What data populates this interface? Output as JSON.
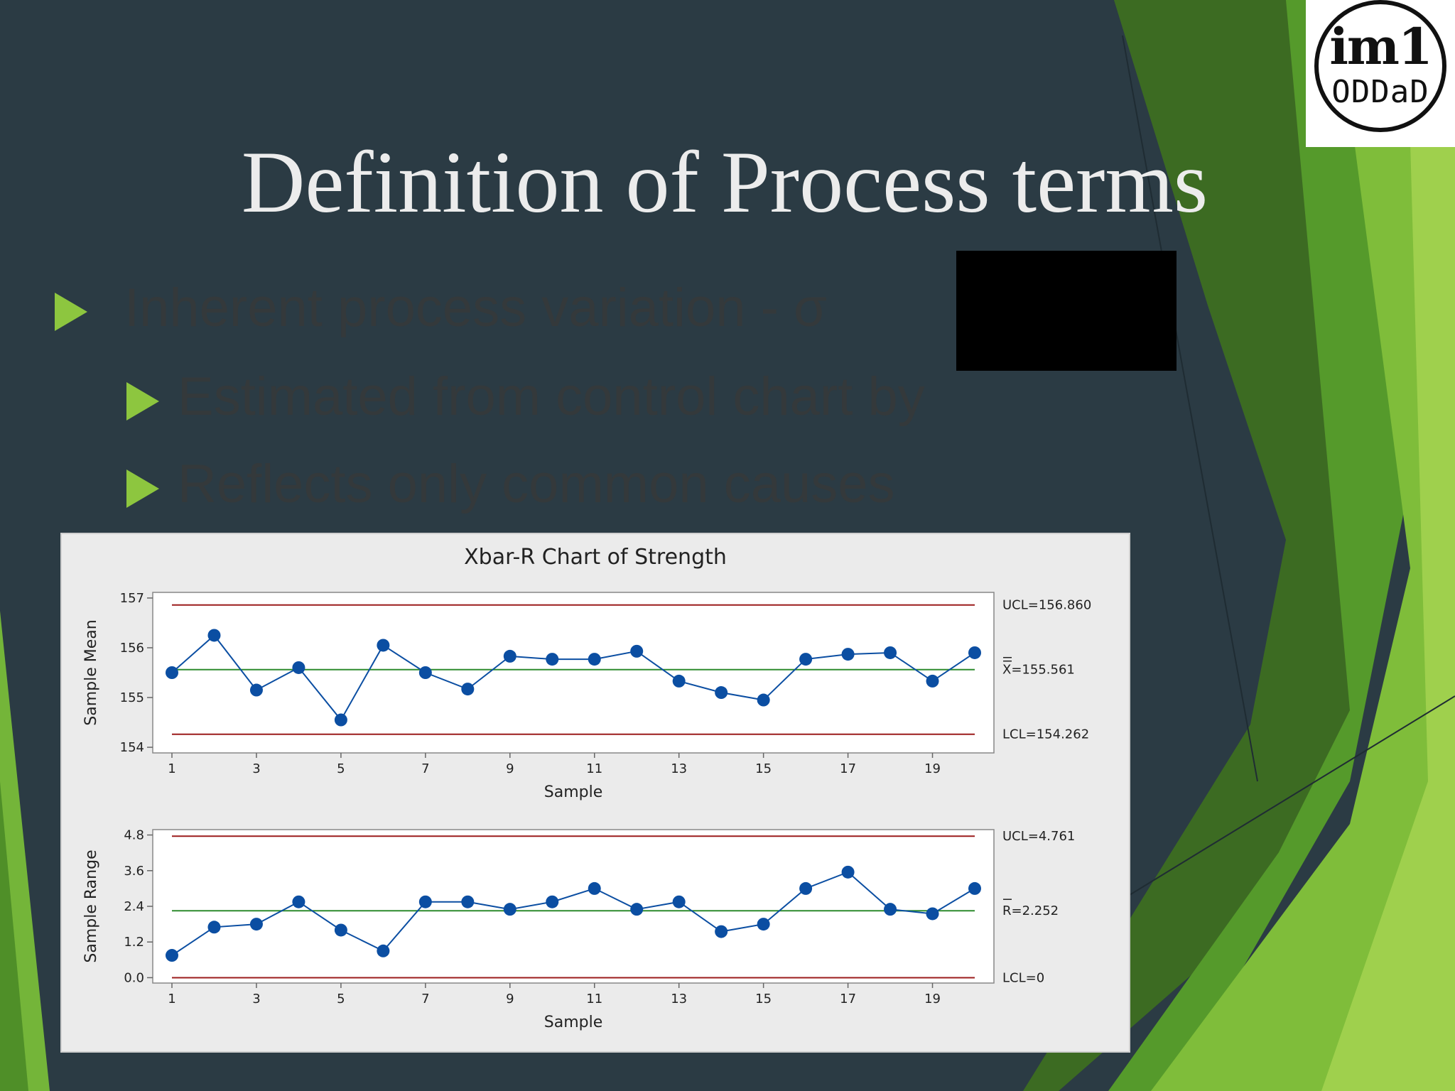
{
  "slide": {
    "title": "Definition of Process terms",
    "bullets": [
      "Inherent process variation - σ",
      "Estimated from control chart by",
      "Reflects only common causes"
    ],
    "logo_text": {
      "top": "im1",
      "bottom": "ODDaD"
    }
  },
  "colors": {
    "background": "#2b3b44",
    "accent_green": "#8dc63f",
    "title_text": "#ececec",
    "control_limit": "#9b1c1c",
    "center_line": "#2e8b2e",
    "series": "#0b4ea2"
  },
  "chart_data": {
    "title": "Xbar-R Chart of Strength",
    "charts": [
      {
        "type": "line",
        "ylabel": "Sample Mean",
        "xlabel": "Sample",
        "ylim": [
          154,
          157
        ],
        "yticks": [
          154,
          155,
          156,
          157
        ],
        "ytick_labels": [
          "154",
          "155",
          "156",
          "157"
        ],
        "x": [
          1,
          2,
          3,
          4,
          5,
          6,
          7,
          8,
          9,
          10,
          11,
          12,
          13,
          14,
          15,
          16,
          17,
          18,
          19,
          20
        ],
        "xticks": [
          1,
          3,
          5,
          7,
          9,
          11,
          13,
          15,
          17,
          19
        ],
        "values": [
          155.5,
          156.25,
          155.15,
          155.6,
          154.55,
          156.05,
          155.5,
          155.17,
          155.83,
          155.77,
          155.77,
          155.93,
          155.33,
          155.1,
          154.95,
          155.77,
          155.87,
          155.9,
          155.33,
          155.9
        ],
        "ucl": 156.86,
        "center": 155.561,
        "lcl": 154.262,
        "ucl_label": "UCL=156.860",
        "center_label": "X=155.561",
        "lcl_label": "LCL=154.262"
      },
      {
        "type": "line",
        "ylabel": "Sample Range",
        "xlabel": "Sample",
        "ylim": [
          0,
          4.8
        ],
        "yticks": [
          0,
          1.2,
          2.4,
          3.6,
          4.8
        ],
        "ytick_labels": [
          "0.0",
          "1.2",
          "2.4",
          "3.6",
          "4.8"
        ],
        "x": [
          1,
          2,
          3,
          4,
          5,
          6,
          7,
          8,
          9,
          10,
          11,
          12,
          13,
          14,
          15,
          16,
          17,
          18,
          19,
          20
        ],
        "xticks": [
          1,
          3,
          5,
          7,
          9,
          11,
          13,
          15,
          17,
          19
        ],
        "values": [
          0.75,
          1.7,
          1.8,
          2.55,
          1.6,
          0.9,
          2.55,
          2.55,
          2.3,
          2.55,
          3.0,
          2.3,
          2.55,
          1.55,
          1.8,
          3.0,
          3.55,
          2.3,
          2.15,
          3.0
        ],
        "ucl": 4.761,
        "center": 2.252,
        "lcl": 0,
        "ucl_label": "UCL=4.761",
        "center_label": "R=2.252",
        "lcl_label": "LCL=0"
      }
    ]
  }
}
